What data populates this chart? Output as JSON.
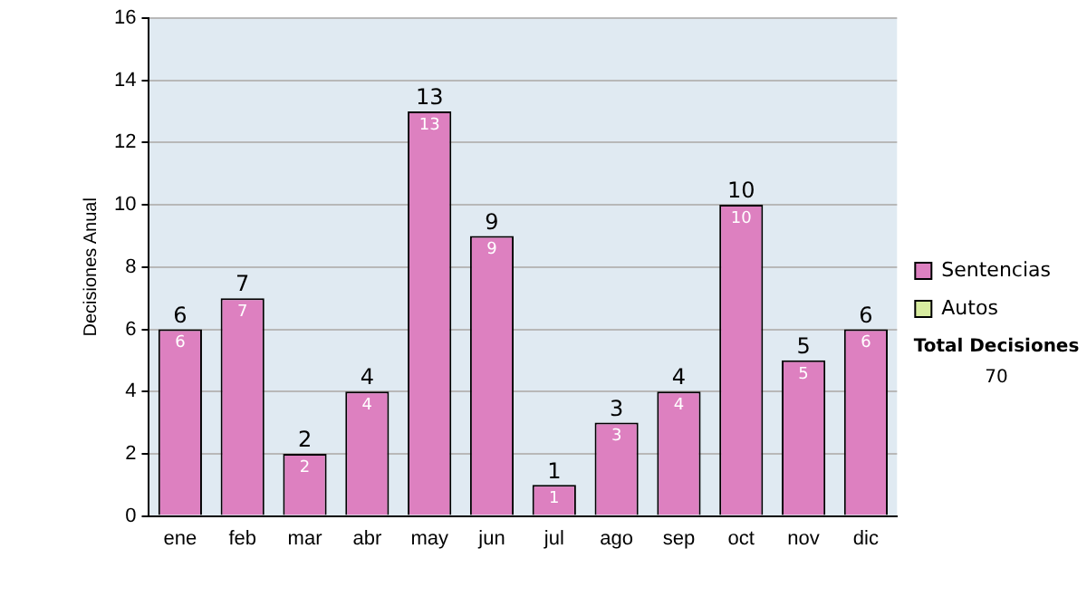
{
  "chart_data": {
    "type": "bar",
    "stacked": true,
    "ylabel": "Decisiones Anual",
    "categories": [
      "ene",
      "feb",
      "mar",
      "abr",
      "may",
      "jun",
      "jul",
      "ago",
      "sep",
      "oct",
      "nov",
      "dic"
    ],
    "series": [
      {
        "name": "Sentencias",
        "color": "#dd80c0",
        "values": [
          6,
          7,
          2,
          4,
          13,
          9,
          1,
          3,
          4,
          10,
          5,
          6
        ],
        "value_labels": [
          "6",
          "7",
          "2",
          "4",
          "13",
          "9",
          "1",
          "3",
          "4",
          "10",
          "5",
          "6"
        ]
      },
      {
        "name": "Autos",
        "color": "#d8eca0",
        "values": [
          0,
          0,
          0,
          0,
          0,
          0,
          0,
          0,
          0,
          0,
          0,
          0
        ]
      }
    ],
    "totals": [
      "6",
      "7",
      "2",
      "4",
      "13",
      "9",
      "1",
      "3",
      "4",
      "10",
      "5",
      "6"
    ],
    "ylim": [
      0,
      16
    ],
    "yticks": [
      0,
      2,
      4,
      6,
      8,
      10,
      12,
      14,
      16
    ],
    "grid": "y",
    "legend": "right",
    "annotations": [
      "Total Decisiones",
      "70"
    ]
  }
}
